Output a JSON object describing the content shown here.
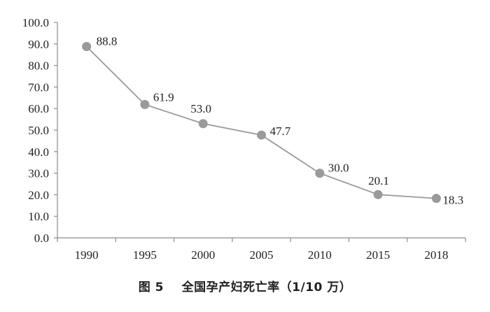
{
  "chart_data": {
    "type": "line",
    "title": "图 5   全国孕产妇死亡率（1/10 万）",
    "xlabel": "",
    "ylabel": "",
    "categories": [
      "1990",
      "1995",
      "2000",
      "2005",
      "2010",
      "2015",
      "2018"
    ],
    "series": [
      {
        "name": "全国孕产妇死亡率（1/10 万）",
        "values": [
          88.8,
          61.9,
          53.0,
          47.7,
          30.0,
          20.1,
          18.3
        ]
      }
    ],
    "data_labels": [
      "88.8",
      "61.9",
      "53.0",
      "47.7",
      "30.0",
      "20.1",
      "18.3"
    ],
    "ylim": [
      0,
      100
    ],
    "yticks": [
      "0.0",
      "10.0",
      "20.0",
      "30.0",
      "40.0",
      "50.0",
      "60.0",
      "70.0",
      "80.0",
      "90.0",
      "100.0"
    ],
    "grid": false,
    "legend": "none",
    "colors": {
      "line": "#9a9a9a",
      "marker": "#9a9a9a",
      "axis": "#8c8c8c",
      "text": "#231f20"
    }
  },
  "caption": {
    "figure_label": "图 5",
    "title": "全国孕产妇死亡率（1/10 万）"
  }
}
